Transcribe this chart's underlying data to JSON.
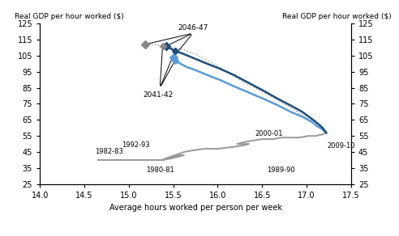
{
  "ylabel_left": "Real GDP per hour worked ($)",
  "ylabel_right": "Real GDP per hour worked ($)",
  "xlabel": "Average hours worked per person per week",
  "xlim": [
    14.0,
    17.5
  ],
  "ylim": [
    25,
    125
  ],
  "xticks": [
    14.0,
    14.5,
    15.0,
    15.5,
    16.0,
    16.5,
    17.0,
    17.5
  ],
  "yticks": [
    25,
    35,
    45,
    55,
    65,
    75,
    85,
    95,
    105,
    115,
    125
  ],
  "history_x": [
    14.65,
    14.68,
    14.72,
    14.78,
    14.85,
    14.92,
    15.0,
    15.08,
    15.18,
    15.28,
    15.38,
    15.48,
    15.55,
    15.62,
    15.55,
    15.48,
    15.42,
    15.38,
    15.42,
    15.52,
    15.62,
    15.72,
    15.85,
    16.0,
    16.15,
    16.28,
    16.35,
    16.28,
    16.22,
    16.28,
    16.38,
    16.5,
    16.62,
    16.72,
    16.82,
    16.92,
    17.02,
    17.1,
    17.18,
    17.22
  ],
  "history_y": [
    40,
    40,
    40,
    40,
    40,
    40,
    40,
    40,
    40,
    40,
    40,
    41,
    42,
    43,
    43,
    42,
    41,
    40,
    41,
    43,
    45,
    46,
    47,
    47,
    48,
    49,
    50,
    50,
    50,
    51,
    52,
    53,
    53,
    54,
    54,
    54,
    55,
    55,
    56,
    57
  ],
  "igr2_x": [
    17.22,
    17.18,
    17.12,
    17.05,
    16.95,
    16.82,
    16.68,
    16.52,
    16.35,
    16.18,
    16.02,
    15.88,
    15.75,
    15.62,
    15.52,
    15.45,
    15.42
  ],
  "igr2_y": [
    57,
    60,
    63,
    66,
    70,
    74,
    78,
    83,
    88,
    93,
    97,
    100,
    103,
    106,
    108,
    110,
    111
  ],
  "igr1_x": [
    17.22,
    17.18,
    17.12,
    17.05,
    16.95,
    16.82,
    16.68,
    16.52,
    16.35,
    16.18,
    16.02,
    15.88,
    15.75,
    15.65,
    15.58,
    15.52,
    15.5
  ],
  "igr1_y": [
    57,
    59,
    61,
    64,
    67,
    70,
    74,
    78,
    82,
    86,
    90,
    93,
    96,
    98,
    100,
    102,
    104
  ],
  "igr2_igr1_x": [
    17.22,
    17.15,
    17.05,
    16.92,
    16.78,
    16.62,
    16.45,
    16.28,
    16.1,
    15.92,
    15.75,
    15.6,
    15.48,
    15.38,
    15.3,
    15.22,
    15.18
  ],
  "igr2_igr1_y": [
    57,
    61,
    65,
    69,
    74,
    79,
    84,
    89,
    95,
    101,
    106,
    109,
    110,
    111,
    112,
    112,
    112
  ],
  "history_color": "#999999",
  "igr2_color": "#1f4e79",
  "igr1_color": "#5b9bd5",
  "igr2_igr1_color": "#aaaaaa",
  "peak_igr2": [
    15.42,
    111
  ],
  "peak_igr1": [
    15.5,
    104
  ],
  "peak_igr2igr1": [
    15.18,
    112
  ],
  "anno_2041_igr2": [
    15.52,
    108
  ],
  "anno_2041_igr1": [
    15.52,
    102
  ],
  "anno_2041_igr2igr1": [
    15.38,
    111
  ]
}
